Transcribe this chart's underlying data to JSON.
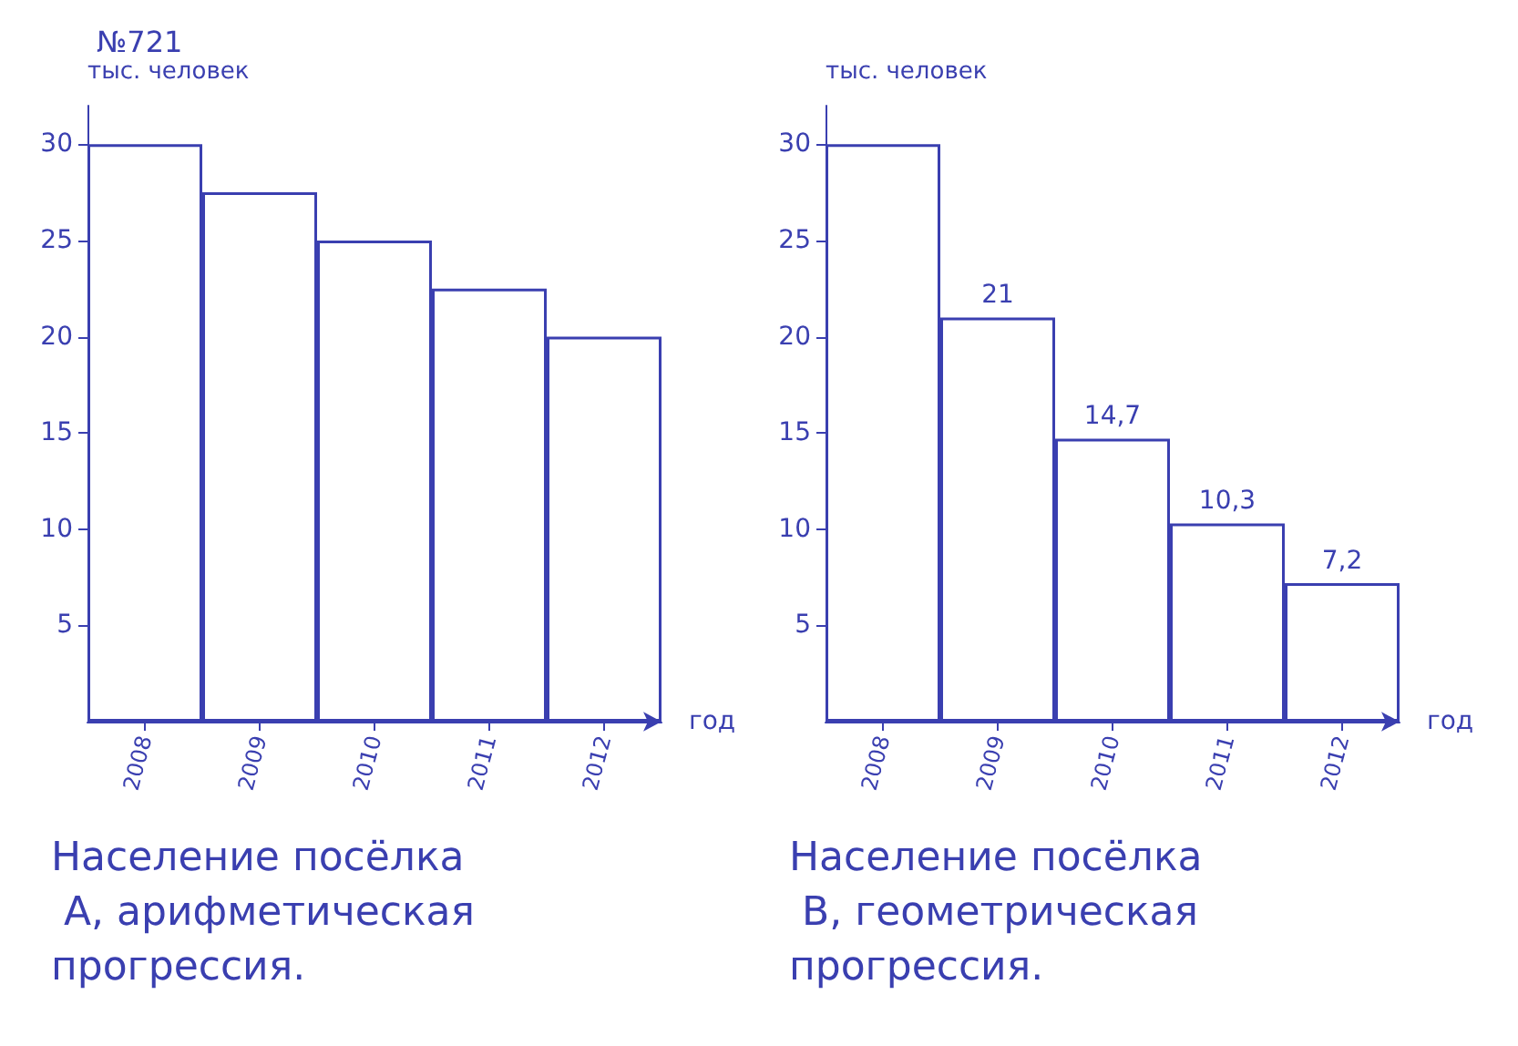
{
  "chart_data": [
    {
      "type": "bar",
      "title": "№721",
      "ylabel": "тыс. человек",
      "xlabel": "год",
      "categories": [
        "2008",
        "2009",
        "2010",
        "2011",
        "2012"
      ],
      "series": [
        {
          "color": "#3a3fb0",
          "values": [
            30,
            27.5,
            25,
            22.5,
            20
          ]
        }
      ],
      "ylim": [
        0,
        32
      ],
      "yticks": [
        5,
        10,
        15,
        20,
        25,
        30
      ],
      "grid": false,
      "annotations": [
        "Население посёлка А, арифметическая прогрессия."
      ]
    },
    {
      "type": "bar",
      "ylabel": "тыс. человек",
      "xlabel": "год",
      "categories": [
        "2008",
        "2009",
        "2010",
        "2011",
        "2012"
      ],
      "series": [
        {
          "color": "#3a3fb0",
          "values": [
            30,
            21,
            14.7,
            10.3,
            7.2
          ],
          "value_labels": [
            null,
            "21",
            "14,7",
            "10,3",
            "7,2"
          ]
        }
      ],
      "ylim": [
        0,
        32
      ],
      "yticks": [
        5,
        10,
        15,
        20,
        25,
        30
      ],
      "grid": false,
      "annotations": [
        "Население посёлка В, геометрическая прогрессия."
      ]
    }
  ]
}
